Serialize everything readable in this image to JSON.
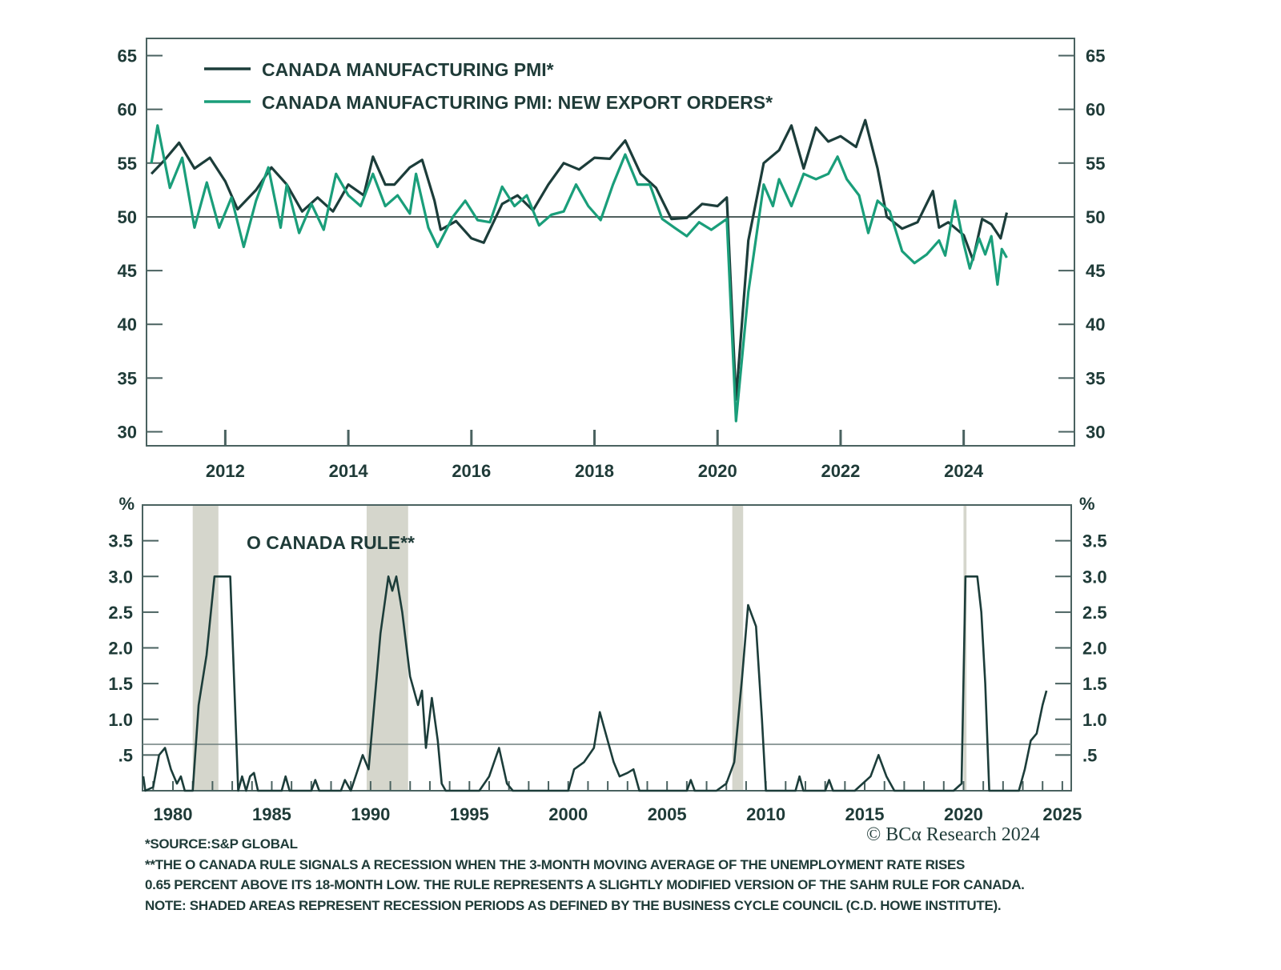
{
  "colors": {
    "pmi": "#1c3d3a",
    "export_orders": "#1a9e7a",
    "frame": "#4a6260",
    "recession_shade": "#d5d6cc",
    "text": "#1f3b38"
  },
  "chart_data": [
    {
      "type": "line",
      "title": "",
      "xlabel": "",
      "ylabel": "",
      "xlim": [
        2010.72,
        2025.8
      ],
      "ylim": [
        28.7,
        66.6
      ],
      "x_ticks": [
        "2012",
        "2014",
        "2016",
        "2018",
        "2020",
        "2022",
        "2024"
      ],
      "y_ticks": [
        "30",
        "35",
        "40",
        "45",
        "50",
        "55",
        "60",
        "65"
      ],
      "reference_line": 50,
      "grid": false,
      "legend_position": "top-left",
      "series": [
        {
          "name": "CANADA MANUFACTURING PMI*",
          "color_key": "pmi",
          "x": [
            2010.8,
            2011.0,
            2011.25,
            2011.5,
            2011.75,
            2012.0,
            2012.2,
            2012.5,
            2012.75,
            2013.0,
            2013.25,
            2013.5,
            2013.75,
            2014.0,
            2014.25,
            2014.4,
            2014.6,
            2014.75,
            2015.0,
            2015.2,
            2015.4,
            2015.5,
            2015.75,
            2016.0,
            2016.2,
            2016.5,
            2016.75,
            2017.0,
            2017.25,
            2017.5,
            2017.75,
            2018.0,
            2018.25,
            2018.5,
            2018.75,
            2019.0,
            2019.25,
            2019.5,
            2019.75,
            2020.0,
            2020.15,
            2020.3,
            2020.5,
            2020.75,
            2021.0,
            2021.2,
            2021.4,
            2021.6,
            2021.8,
            2022.0,
            2022.25,
            2022.4,
            2022.6,
            2022.75,
            2023.0,
            2023.25,
            2023.5,
            2023.6,
            2023.75,
            2024.0,
            2024.15,
            2024.3,
            2024.45,
            2024.6,
            2024.7
          ],
          "y": [
            54.0,
            55.2,
            56.9,
            54.5,
            55.5,
            53.3,
            50.7,
            52.5,
            54.6,
            53.0,
            50.5,
            51.8,
            50.5,
            53.0,
            52.0,
            55.6,
            53.0,
            53.0,
            54.6,
            55.3,
            51.5,
            48.8,
            49.6,
            48.0,
            47.6,
            51.2,
            52.0,
            50.6,
            53.0,
            55.0,
            54.4,
            55.5,
            55.4,
            57.1,
            54.0,
            52.7,
            49.8,
            49.9,
            51.2,
            51.0,
            51.8,
            33.0,
            47.8,
            55.0,
            56.2,
            58.5,
            54.5,
            58.3,
            57.0,
            57.5,
            56.5,
            59.0,
            54.5,
            50.0,
            48.9,
            49.5,
            52.4,
            49.0,
            49.5,
            48.3,
            46.0,
            49.8,
            49.3,
            48.0,
            50.4
          ]
        },
        {
          "name": "CANADA  MANUFACTURING PMI: NEW EXPORT ORDERS*",
          "color_key": "export_orders",
          "x": [
            2010.8,
            2010.9,
            2011.1,
            2011.3,
            2011.5,
            2011.7,
            2011.9,
            2012.1,
            2012.3,
            2012.5,
            2012.7,
            2012.9,
            2013.0,
            2013.2,
            2013.4,
            2013.6,
            2013.8,
            2014.0,
            2014.2,
            2014.4,
            2014.6,
            2014.8,
            2015.0,
            2015.1,
            2015.3,
            2015.45,
            2015.7,
            2015.9,
            2016.1,
            2016.3,
            2016.5,
            2016.7,
            2016.9,
            2017.1,
            2017.3,
            2017.5,
            2017.7,
            2017.9,
            2018.1,
            2018.3,
            2018.5,
            2018.7,
            2018.9,
            2019.1,
            2019.3,
            2019.5,
            2019.7,
            2019.9,
            2020.15,
            2020.3,
            2020.5,
            2020.75,
            2020.9,
            2021.0,
            2021.2,
            2021.4,
            2021.6,
            2021.8,
            2021.95,
            2022.1,
            2022.3,
            2022.45,
            2022.6,
            2022.8,
            2023.0,
            2023.2,
            2023.4,
            2023.6,
            2023.7,
            2023.86,
            2024.0,
            2024.1,
            2024.25,
            2024.35,
            2024.45,
            2024.55,
            2024.62,
            2024.7
          ],
          "y": [
            55.0,
            58.5,
            52.7,
            55.5,
            49.0,
            53.2,
            49.0,
            51.8,
            47.2,
            51.5,
            54.6,
            49.0,
            53.0,
            48.5,
            51.2,
            48.8,
            54.0,
            52.0,
            51.0,
            54.0,
            51.0,
            52.0,
            50.3,
            54.0,
            49.0,
            47.2,
            50.0,
            51.5,
            49.7,
            49.5,
            52.8,
            51.0,
            52.0,
            49.2,
            50.2,
            50.5,
            53.0,
            51.0,
            49.7,
            53.0,
            55.8,
            53.0,
            53.0,
            49.8,
            49.0,
            48.2,
            49.5,
            48.8,
            49.8,
            31.0,
            43.0,
            53.0,
            51.0,
            53.5,
            51.0,
            54.0,
            53.5,
            54.0,
            55.6,
            53.5,
            52.0,
            48.5,
            51.5,
            50.5,
            46.8,
            45.7,
            46.5,
            47.8,
            46.4,
            51.5,
            47.5,
            45.2,
            48.0,
            46.5,
            48.2,
            43.7,
            47.0,
            46.2
          ]
        }
      ]
    },
    {
      "type": "line",
      "title": "O CANADA RULE**",
      "xlabel": "",
      "ylabel": "%",
      "xlim": [
        1978.46,
        2025.45
      ],
      "ylim": [
        0,
        4.0
      ],
      "x_ticks": [
        "1980",
        "1985",
        "1990",
        "1995",
        "2000",
        "2005",
        "2010",
        "2015",
        "2020",
        "2025"
      ],
      "y_ticks": [
        ".5",
        "1.0",
        "1.5",
        "2.0",
        "2.5",
        "3.0",
        "3.5"
      ],
      "threshold_line": 0.65,
      "grid": false,
      "recessions": [
        [
          1981.0,
          1982.3
        ],
        [
          1989.8,
          1991.9
        ],
        [
          2008.3,
          2008.85
        ],
        [
          2020.0,
          2020.15
        ]
      ],
      "series": [
        {
          "color_key": "pmi",
          "x": [
            1978.5,
            1978.6,
            1979.0,
            1979.3,
            1979.6,
            1979.9,
            1980.2,
            1980.4,
            1980.6,
            1981.0,
            1981.3,
            1981.7,
            1982.1,
            1982.9,
            1983.3,
            1983.5,
            1983.7,
            1983.9,
            1984.1,
            1984.3,
            1985.5,
            1985.7,
            1985.9,
            1987.0,
            1987.2,
            1987.4,
            1988.5,
            1988.7,
            1989.0,
            1989.6,
            1989.9,
            1990.5,
            1990.9,
            1991.1,
            1991.3,
            1991.6,
            1992.0,
            1992.4,
            1992.6,
            1992.8,
            1993.1,
            1993.4,
            1993.6,
            1993.8,
            1995.5,
            1996.0,
            1996.5,
            1996.9,
            1997.2,
            2000.0,
            2000.3,
            2000.8,
            2001.3,
            2001.6,
            2001.9,
            2002.3,
            2002.6,
            2003.0,
            2003.3,
            2003.6,
            2006.0,
            2006.2,
            2006.4,
            2007.5,
            2008.0,
            2008.4,
            2008.8,
            2009.1,
            2009.5,
            2009.8,
            2010.0,
            2011.5,
            2011.7,
            2011.9,
            2013.0,
            2013.2,
            2013.4,
            2014.5,
            2015.3,
            2015.7,
            2016.1,
            2016.5,
            2019.5,
            2019.9,
            2020.1,
            2020.7,
            2020.9,
            2021.1,
            2021.3,
            2022.8,
            2023.1,
            2023.4,
            2023.7,
            2024.0,
            2024.2
          ],
          "y": [
            0.2,
            0,
            0.05,
            0.5,
            0.6,
            0.3,
            0.1,
            0.2,
            0,
            0,
            1.2,
            1.9,
            3.0,
            3.0,
            0,
            0.2,
            0,
            0.2,
            0.25,
            0,
            0,
            0.2,
            0,
            0,
            0.15,
            0,
            0,
            0.15,
            0,
            0.5,
            0.3,
            2.2,
            3.0,
            2.8,
            3.0,
            2.5,
            1.6,
            1.2,
            1.4,
            0.6,
            1.3,
            0.7,
            0.1,
            0,
            0,
            0.2,
            0.6,
            0.1,
            0,
            0,
            0.3,
            0.4,
            0.6,
            1.1,
            0.8,
            0.4,
            0.2,
            0.25,
            0.3,
            0,
            0,
            0.15,
            0,
            0,
            0.1,
            0.4,
            1.6,
            2.6,
            2.3,
            1.0,
            0,
            0,
            0.2,
            0,
            0,
            0.15,
            0,
            0,
            0.2,
            0.5,
            0.2,
            0,
            0,
            0.1,
            3.0,
            3.0,
            2.5,
            1.5,
            0,
            0,
            0.3,
            0.7,
            0.8,
            1.2,
            1.4
          ]
        }
      ]
    }
  ],
  "footnotes": {
    "source": "*SOURCE:S&P GLOBAL",
    "rule_line1": "**THE O CANADA RULE SIGNALS A RECESSION WHEN THE 3-MONTH MOVING AVERAGE OF THE UNEMPLOYMENT RATE RISES",
    "rule_line2": "0.65 PERCENT ABOVE ITS 18-MONTH LOW. THE RULE REPRESENTS A SLIGHTLY MODIFIED VERSION OF THE SAHM RULE FOR CANADA.",
    "note": "NOTE: SHADED AREAS REPRESENT RECESSION PERIODS AS DEFINED BY THE BUSINESS CYCLE COUNCIL (C.D. HOWE INSTITUTE)."
  },
  "copyright": "© BCα Research 2024"
}
